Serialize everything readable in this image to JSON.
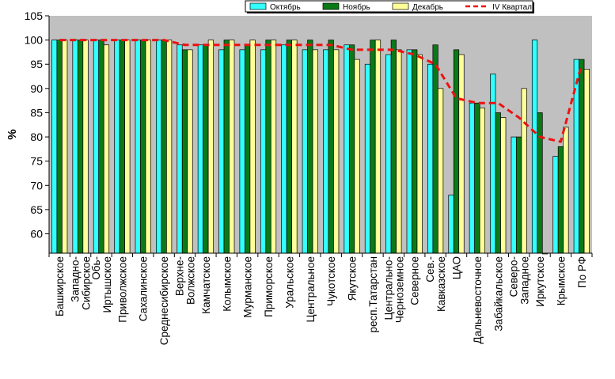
{
  "chart_data": {
    "type": "bar",
    "title": "",
    "xlabel": "",
    "ylabel": "%",
    "ylim": [
      56,
      105
    ],
    "yticks": [
      60,
      65,
      70,
      75,
      80,
      85,
      90,
      95,
      100,
      105
    ],
    "grid": false,
    "legend": "top-right",
    "categories": [
      "Башкирское",
      "Западно-Сибирское",
      "Обь-Иртышское",
      "Приволжское",
      "Сахалинское",
      "Среднесибирское",
      "Верхне-Волжское",
      "Камчатское",
      "Колымское",
      "Мурманское",
      "Приморское",
      "Уральское",
      "Центральное",
      "Чукотское",
      "Якутское",
      "респ.Татарстан",
      "Центрально-Черноземное",
      "Северное",
      "Сев.-Кавказское",
      "ЦАО",
      "Дальневосточное",
      "Забайкальское",
      "Северо-Западное",
      "Иркутское",
      "Крымское",
      "По РФ"
    ],
    "category_lines": [
      [
        "Башкирское"
      ],
      [
        "Западно-",
        "Сибирское"
      ],
      [
        "Обь-",
        "Иртышское"
      ],
      [
        "Приволжское"
      ],
      [
        "Сахалинское"
      ],
      [
        "Среднесибирское"
      ],
      [
        "Верхне-",
        "Волжское"
      ],
      [
        "Камчатское"
      ],
      [
        "Колымское"
      ],
      [
        "Мурманское"
      ],
      [
        "Приморское"
      ],
      [
        "Уральское"
      ],
      [
        "Центральное"
      ],
      [
        "Чукотское"
      ],
      [
        "Якутское"
      ],
      [
        "респ.Татарстан"
      ],
      [
        "Центрально-",
        "Черноземное"
      ],
      [
        "Северное"
      ],
      [
        "Сев.-",
        "Кавказское"
      ],
      [
        "ЦАО"
      ],
      [
        "Дальневосточное"
      ],
      [
        "Забайкальское"
      ],
      [
        "Северо-",
        "Западное"
      ],
      [
        "Иркутское"
      ],
      [
        "Крымское"
      ],
      [
        "По РФ"
      ]
    ],
    "series": [
      {
        "name": "Октябрь",
        "type": "bar",
        "color": "#33ffff",
        "values": [
          100,
          100,
          100,
          100,
          100,
          100,
          99,
          99,
          98,
          98,
          98,
          99,
          98,
          98,
          99,
          95,
          97,
          98,
          95,
          68,
          87,
          93,
          80,
          100,
          76,
          96
        ]
      },
      {
        "name": "Ноябрь",
        "type": "bar",
        "color": "#0a7a16",
        "values": [
          100,
          100,
          100,
          100,
          100,
          100,
          98,
          99,
          100,
          99,
          100,
          100,
          100,
          100,
          99,
          100,
          100,
          98,
          99,
          98,
          87,
          85,
          80,
          85,
          78,
          96
        ]
      },
      {
        "name": "Декабрь",
        "type": "bar",
        "color": "#ffff99",
        "values": [
          100,
          100,
          99,
          100,
          100,
          100,
          98,
          100,
          100,
          100,
          100,
          100,
          98,
          98,
          96,
          100,
          98,
          97,
          90,
          97,
          86,
          84,
          90,
          56,
          82,
          94
        ]
      },
      {
        "name": "IV Квартал",
        "type": "line",
        "color": "#ee1111",
        "values": [
          100,
          100,
          100,
          100,
          100,
          100,
          99,
          99,
          99,
          99,
          99,
          99,
          99,
          99,
          98,
          98,
          98,
          97,
          95,
          88,
          87,
          87,
          84,
          80,
          79,
          95
        ]
      }
    ],
    "colors": {
      "plot_background": "#c0c0c0",
      "axis": "#000000"
    }
  }
}
